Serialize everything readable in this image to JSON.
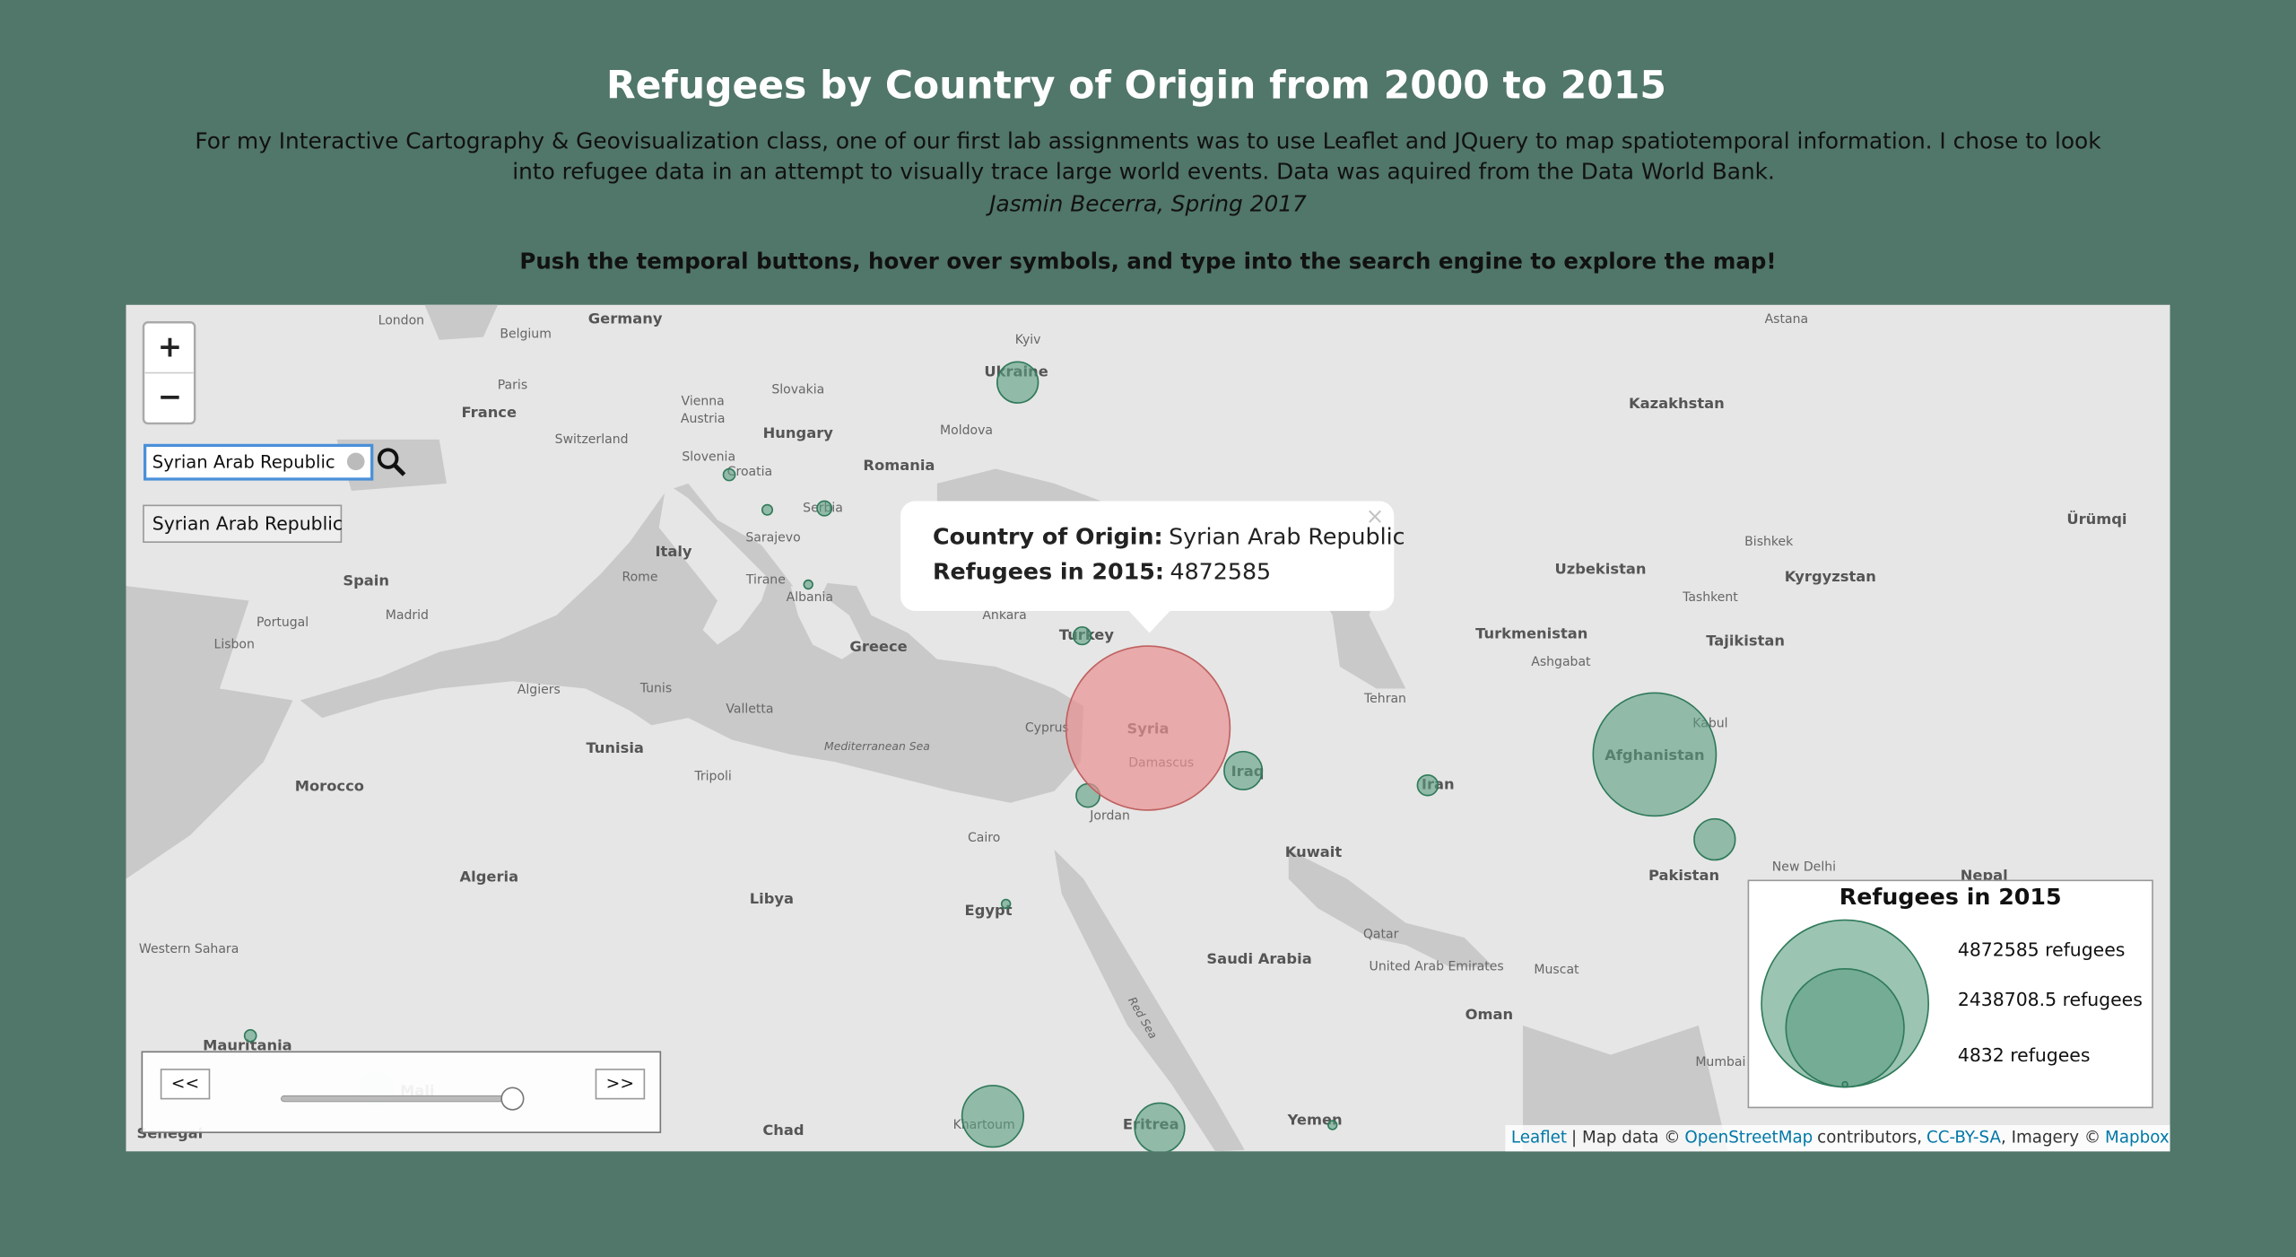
{
  "header": {
    "title": "Refugees by Country of Origin from 2000 to 2015",
    "description_lines": [
      "For my Interactive Cartography & Geovisualization class, one of our first lab assignments was to use Leaflet and JQuery to map spatiotemporal information. I chose to look",
      "into refugee data in an attempt to visually trace large world events. Data was aquired from the Data World Bank."
    ],
    "author": "Jasmin Becerra, Spring 2017",
    "instruction": "Push the temporal buttons, hover over symbols, and type into the search engine to explore the map!"
  },
  "map": {
    "zoom_in": "+",
    "zoom_out": "−",
    "search_value": "Syrian Arab Republic",
    "search_suggestion": "Syrian Arab Republic",
    "prev_button": "<<",
    "next_button": ">>",
    "popup": {
      "origin_label": "Country of Origin:",
      "origin": "Syrian Arab Republic",
      "refugees_label": "Refugees in 2015:",
      "refugees": 4872585,
      "close": "×"
    },
    "legend": {
      "title": "Refugees in 2015",
      "items": [
        {
          "value": 4872585,
          "label": "4872585 refugees"
        },
        {
          "value": 2438708.5,
          "label": "2438708.5 refugees"
        },
        {
          "value": 4832,
          "label": "4832 refugees"
        }
      ]
    },
    "attribution": [
      "Leaflet",
      "| Map data ©",
      "OpenStreetMap",
      "contributors,",
      "CC-BY-SA",
      ", Imagery ©",
      "Mapbox"
    ],
    "labels": [
      "Germany",
      "Belgium",
      "London",
      "Paris",
      "France",
      "Kyiv",
      "Ukraine",
      "Kazakhstan",
      "Astana",
      "Slovakia",
      "Vienna",
      "Austria",
      "Hungary",
      "Moldova",
      "Switzerland",
      "Slovenia",
      "Romania",
      "Croatia",
      "Serbia",
      "Ürümqi",
      "Bishkek",
      "Kyrgyzstan",
      "Italy",
      "Sarajevo",
      "Spain",
      "Uzbekistan",
      "Tashkent",
      "Rome",
      "Tirane",
      "Albania",
      "Portugal",
      "Madrid",
      "Ankara",
      "Turkey",
      "Greece",
      "Turkmenistan",
      "Tajikistan",
      "Lisbon",
      "Ashgabat",
      "Algiers",
      "Tunis",
      "Tehran",
      "Valletta",
      "Kabul",
      "Tunisia",
      "Cyprus",
      "Syria",
      "Afghanistan",
      "Damascus",
      "Morocco",
      "Tripoli",
      "Iraq",
      "Iran",
      "Jordan",
      "Cairo",
      "Kuwait",
      "New Delhi",
      "Algeria",
      "Pakistan",
      "Nepal",
      "Libya",
      "Egypt",
      "Saudi Arabia",
      "Qatar",
      "Muscat",
      "United Arab Emirates",
      "Western Sahara",
      "Oman",
      "Mauritania",
      "Mumbai",
      "Mali",
      "Yemen",
      "Chad",
      "Khartoum",
      "Eritrea",
      "Senegal",
      "Mediterranean Sea",
      "Red Sea"
    ]
  }
}
